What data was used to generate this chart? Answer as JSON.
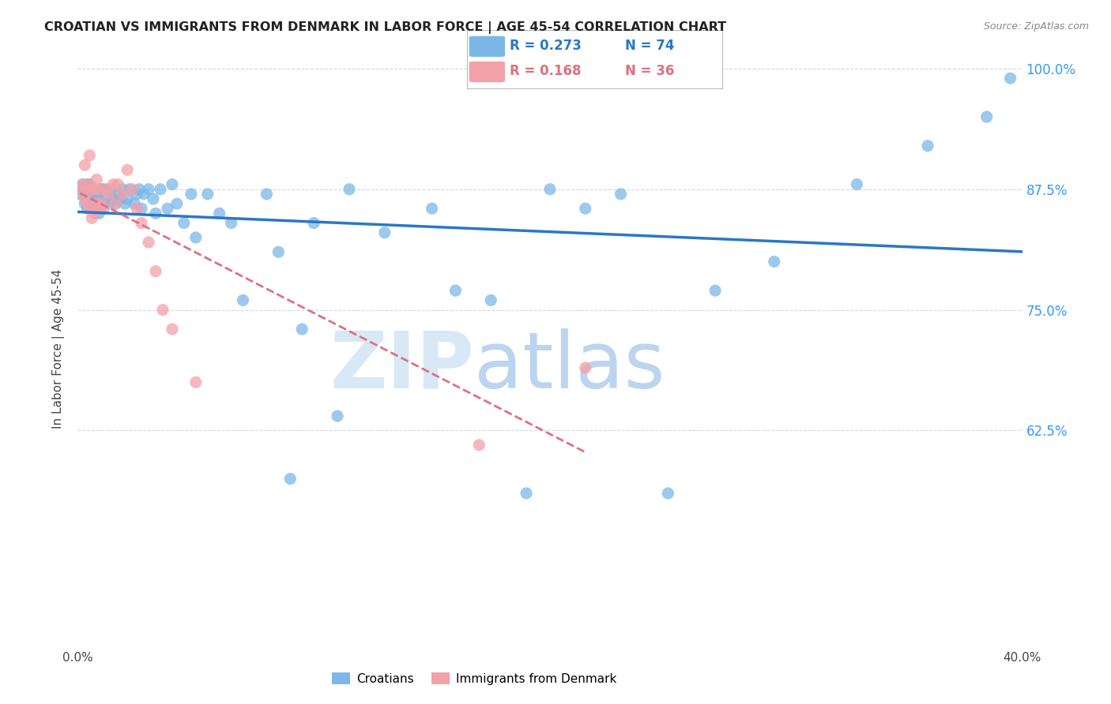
{
  "title": "CROATIAN VS IMMIGRANTS FROM DENMARK IN LABOR FORCE | AGE 45-54 CORRELATION CHART",
  "source": "Source: ZipAtlas.com",
  "ylabel": "In Labor Force | Age 45-54",
  "x_min": 0.0,
  "x_max": 0.4,
  "y_min": 0.4,
  "y_max": 1.02,
  "x_ticks": [
    0.0,
    0.05,
    0.1,
    0.15,
    0.2,
    0.25,
    0.3,
    0.35,
    0.4
  ],
  "x_tick_labels": [
    "0.0%",
    "",
    "",
    "",
    "",
    "",
    "",
    "",
    "40.0%"
  ],
  "y_ticks": [
    0.625,
    0.75,
    0.875,
    1.0
  ],
  "y_tick_labels": [
    "62.5%",
    "75.0%",
    "87.5%",
    "100.0%"
  ],
  "legend_r_blue": "R = 0.273",
  "legend_n_blue": "N = 74",
  "legend_r_pink": "R = 0.168",
  "legend_n_pink": "N = 36",
  "blue_color": "#7bb8e8",
  "pink_color": "#f4a0a8",
  "trendline_blue_color": "#2878c8",
  "trendline_pink_color": "#e07080",
  "blue_scatter_x": [
    0.001,
    0.002,
    0.002,
    0.003,
    0.003,
    0.004,
    0.004,
    0.005,
    0.005,
    0.005,
    0.006,
    0.006,
    0.007,
    0.007,
    0.008,
    0.008,
    0.009,
    0.009,
    0.01,
    0.01,
    0.011,
    0.011,
    0.012,
    0.013,
    0.014,
    0.015,
    0.016,
    0.017,
    0.018,
    0.019,
    0.02,
    0.021,
    0.022,
    0.024,
    0.025,
    0.026,
    0.027,
    0.028,
    0.03,
    0.032,
    0.033,
    0.035,
    0.038,
    0.04,
    0.042,
    0.045,
    0.048,
    0.05,
    0.055,
    0.06,
    0.065,
    0.07,
    0.08,
    0.085,
    0.09,
    0.095,
    0.1,
    0.11,
    0.115,
    0.13,
    0.15,
    0.16,
    0.175,
    0.19,
    0.2,
    0.215,
    0.23,
    0.25,
    0.27,
    0.295,
    0.33,
    0.36,
    0.385,
    0.395
  ],
  "blue_scatter_y": [
    0.87,
    0.875,
    0.88,
    0.86,
    0.872,
    0.855,
    0.88,
    0.865,
    0.875,
    0.88,
    0.855,
    0.875,
    0.86,
    0.87,
    0.855,
    0.865,
    0.85,
    0.87,
    0.855,
    0.875,
    0.86,
    0.875,
    0.87,
    0.86,
    0.875,
    0.865,
    0.86,
    0.87,
    0.865,
    0.875,
    0.86,
    0.865,
    0.875,
    0.86,
    0.87,
    0.875,
    0.855,
    0.87,
    0.875,
    0.865,
    0.85,
    0.875,
    0.855,
    0.88,
    0.86,
    0.84,
    0.87,
    0.825,
    0.87,
    0.85,
    0.84,
    0.76,
    0.87,
    0.81,
    0.575,
    0.73,
    0.84,
    0.64,
    0.875,
    0.83,
    0.855,
    0.77,
    0.76,
    0.56,
    0.875,
    0.855,
    0.87,
    0.56,
    0.77,
    0.8,
    0.88,
    0.92,
    0.95,
    0.99
  ],
  "pink_scatter_x": [
    0.001,
    0.002,
    0.003,
    0.003,
    0.004,
    0.004,
    0.005,
    0.005,
    0.005,
    0.006,
    0.006,
    0.007,
    0.007,
    0.008,
    0.008,
    0.009,
    0.009,
    0.01,
    0.011,
    0.012,
    0.013,
    0.015,
    0.016,
    0.017,
    0.019,
    0.021,
    0.023,
    0.025,
    0.027,
    0.03,
    0.033,
    0.036,
    0.04,
    0.05,
    0.17,
    0.215
  ],
  "pink_scatter_y": [
    0.875,
    0.88,
    0.865,
    0.9,
    0.86,
    0.88,
    0.855,
    0.875,
    0.91,
    0.845,
    0.875,
    0.85,
    0.875,
    0.86,
    0.885,
    0.855,
    0.875,
    0.86,
    0.855,
    0.875,
    0.87,
    0.88,
    0.86,
    0.88,
    0.87,
    0.895,
    0.875,
    0.855,
    0.84,
    0.82,
    0.79,
    0.75,
    0.73,
    0.675,
    0.61,
    0.69
  ],
  "grid_color": "#d0d8e8",
  "grid_style": "--"
}
